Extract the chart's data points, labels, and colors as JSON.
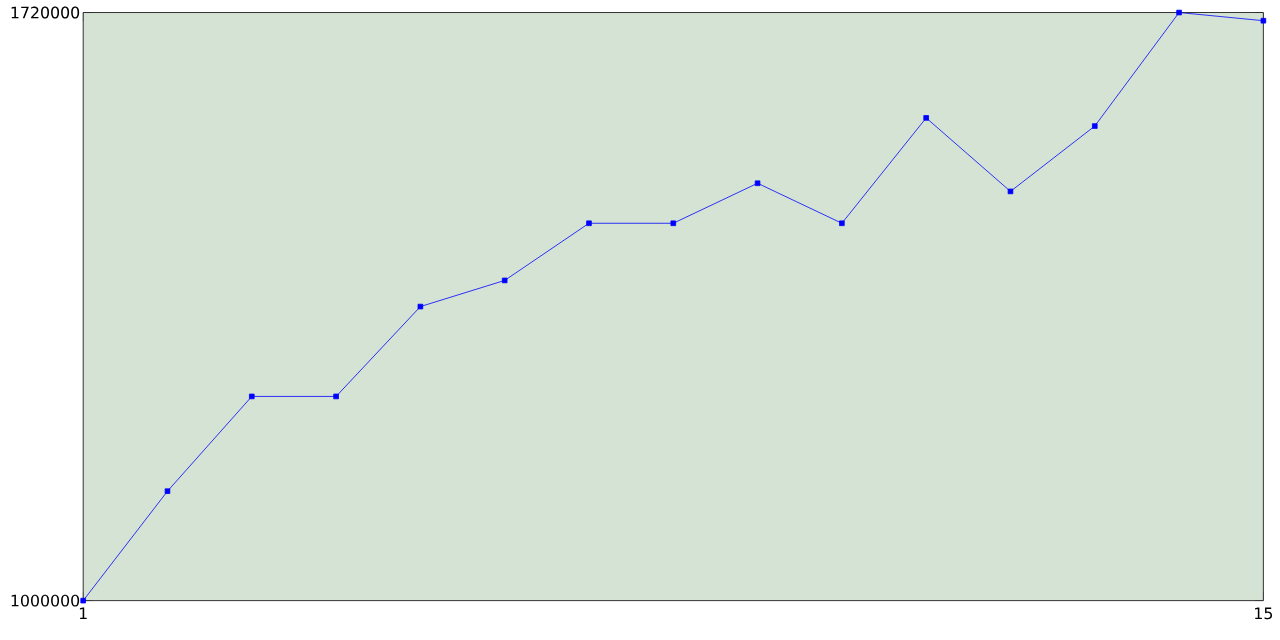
{
  "chart_data": {
    "type": "line",
    "x": [
      1,
      2,
      3,
      4,
      5,
      6,
      7,
      8,
      9,
      10,
      11,
      12,
      13,
      14,
      15
    ],
    "series": [
      {
        "color": "#0000ff",
        "values": [
          1000000,
          1134000,
          1250000,
          1250000,
          1360000,
          1392000,
          1462000,
          1462000,
          1511000,
          1462000,
          1591000,
          1501000,
          1581000,
          1720000,
          1710000
        ]
      }
    ],
    "xlim": [
      1,
      15
    ],
    "xticks": [
      1,
      15
    ],
    "ylim": [
      1000000,
      1720000
    ],
    "yticks": [
      1000000,
      1720000
    ],
    "marker": "square",
    "line_style": "solid"
  }
}
